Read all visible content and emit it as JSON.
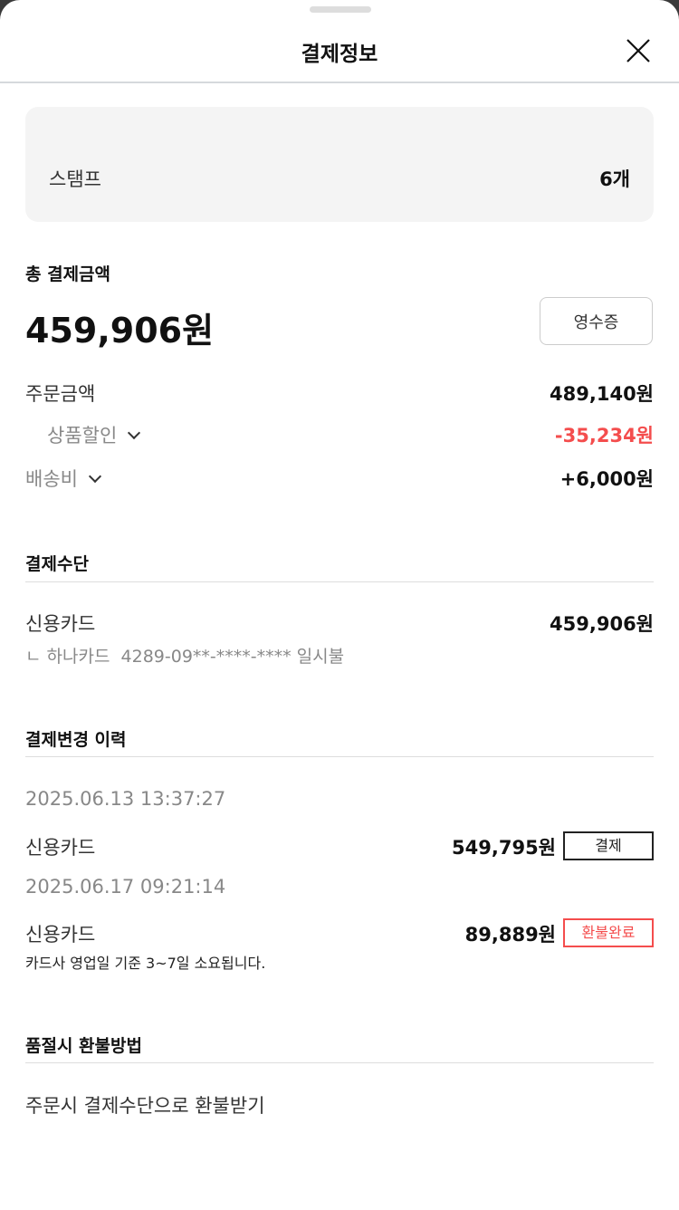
{
  "header": {
    "title": "결제정보"
  },
  "stamp": {
    "label": "스탬프",
    "value": "6개"
  },
  "total": {
    "label": "총 결제금액",
    "amount": "459,906원",
    "receipt_button": "영수증"
  },
  "breakdown": {
    "order_label": "주문금액",
    "order_value": "489,140원",
    "discount_label": "상품할인",
    "discount_value": "-35,234원",
    "shipping_label": "배송비",
    "shipping_value": "+6,000원"
  },
  "payment_method": {
    "title": "결제수단",
    "method": "신용카드",
    "amount": "459,906원",
    "detail": "ㄴ 하나카드  4289-09**-****-**** 일시불"
  },
  "history": {
    "title": "결제변경 이력",
    "items": [
      {
        "datetime": "2025.06.13 13:37:27",
        "method": "신용카드",
        "amount": "549,795원",
        "status": "결제"
      },
      {
        "datetime": "2025.06.17 09:21:14",
        "method": "신용카드",
        "amount": "89,889원",
        "status": "환불완료",
        "note": "카드사 영업일 기준 3~7일 소요됩니다."
      }
    ]
  },
  "refund": {
    "title": "품절시 환불방법",
    "text": "주문시 결제수단으로 환불받기"
  },
  "colors": {
    "negative": "#f44d4d",
    "refund_badge": "#f44d4d"
  }
}
